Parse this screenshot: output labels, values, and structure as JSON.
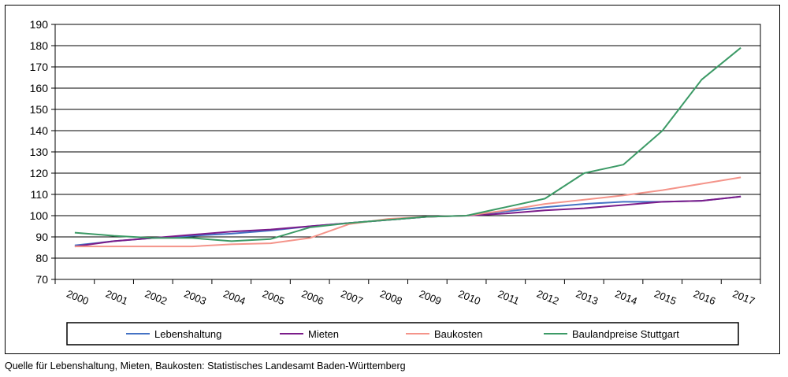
{
  "footnote": "Quelle für Lebenshaltung, Mieten, Baukosten: Statistisches Landesamt Baden-Württemberg",
  "chart_data": {
    "type": "line",
    "title": "",
    "xlabel": "",
    "ylabel": "",
    "ylim": [
      70,
      190
    ],
    "yticks": [
      70,
      80,
      90,
      100,
      110,
      120,
      130,
      140,
      150,
      160,
      170,
      180,
      190
    ],
    "grid": true,
    "legend_position": "bottom",
    "x": [
      "2000",
      "2001",
      "2002",
      "2003",
      "2004",
      "2005",
      "2006",
      "2007",
      "2008",
      "2009",
      "2010",
      "2011",
      "2012",
      "2013",
      "2014",
      "2015",
      "2016",
      "2017"
    ],
    "series": [
      {
        "name": "Lebenshaltung",
        "color": "#4472c4",
        "values": [
          86,
          88,
          89.5,
          90.5,
          91.5,
          93,
          95,
          96.5,
          98,
          99.5,
          100,
          102,
          104,
          105.5,
          106.5,
          106.5,
          107,
          109
        ]
      },
      {
        "name": "Mieten",
        "color": "#7b1c8a",
        "values": [
          85.5,
          88,
          89.5,
          91,
          92.5,
          93.5,
          95,
          96.5,
          98,
          99.5,
          100,
          101,
          102.5,
          103.5,
          105,
          106.5,
          107,
          109
        ]
      },
      {
        "name": "Baukosten",
        "color": "#f4948a",
        "values": [
          85.5,
          85.5,
          85.5,
          85.5,
          86.5,
          87,
          89.5,
          96,
          98.5,
          99.5,
          100,
          102.5,
          105.5,
          107.5,
          109.5,
          112,
          115,
          118
        ]
      },
      {
        "name": "Baulandpreise Stuttgart",
        "color": "#3c9a66",
        "values": [
          92,
          90.5,
          89.5,
          89.5,
          88,
          89,
          94.5,
          96.5,
          98,
          99.5,
          100,
          104,
          108,
          120,
          124,
          140,
          164,
          179
        ]
      }
    ]
  }
}
